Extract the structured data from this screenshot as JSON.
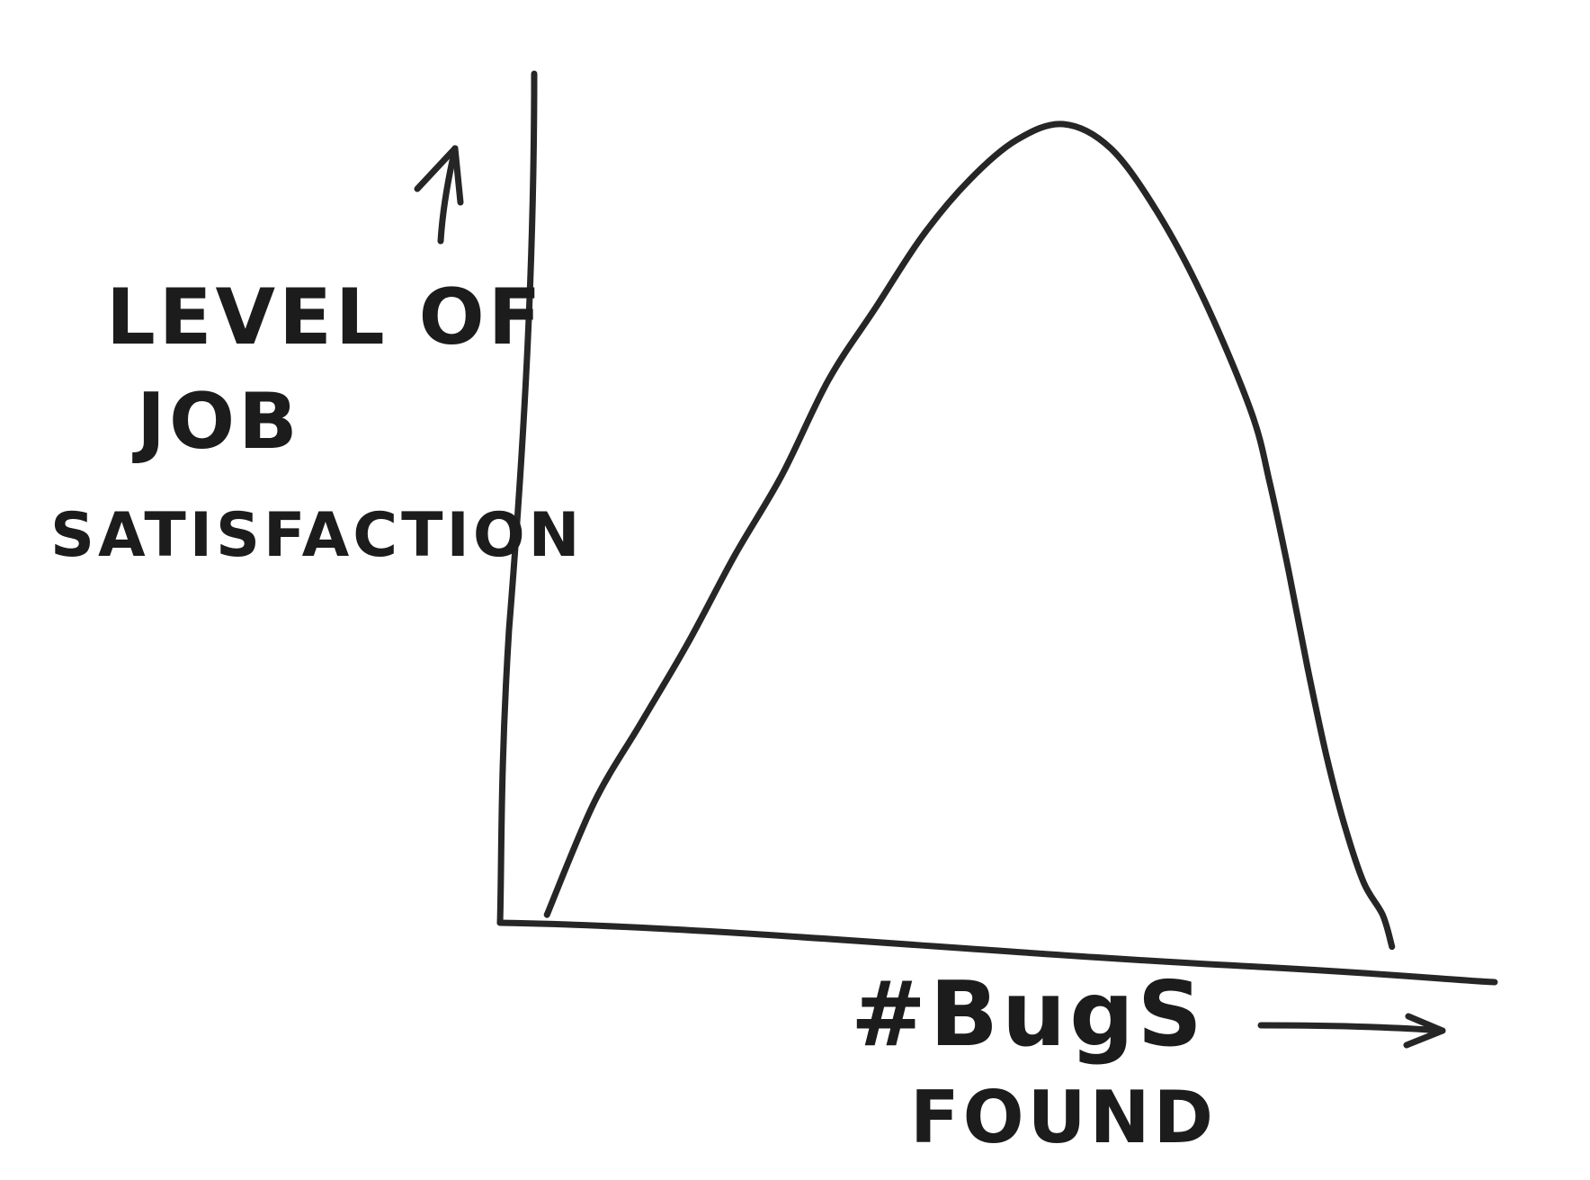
{
  "chart_data": {
    "type": "line",
    "title": "",
    "ylabel_lines": [
      "LEVEL OF",
      "JOB",
      "SATISFACTION"
    ],
    "xlabel_lines": [
      "#BugS",
      "FOUND"
    ],
    "x_axis_arrow": true,
    "y_axis_arrow": true,
    "ticks": "none",
    "grid": false,
    "style": "hand-drawn sketch",
    "xlim": [
      0,
      100
    ],
    "ylim": [
      0,
      100
    ],
    "series": [
      {
        "x": [
          5,
          10,
          15,
          20,
          25,
          30,
          35,
          40,
          45,
          50,
          55,
          60,
          65,
          70,
          75,
          80,
          82,
          84,
          86,
          88,
          90,
          92,
          94,
          95
        ],
        "y": [
          1,
          15,
          25,
          35,
          46,
          56,
          68,
          77,
          86,
          93,
          98,
          100,
          97,
          89,
          78,
          64,
          55,
          44,
          32,
          21,
          12,
          5,
          1,
          -3
        ]
      }
    ]
  },
  "colors": {
    "ink": "#262626",
    "paper": "#ffffff"
  }
}
